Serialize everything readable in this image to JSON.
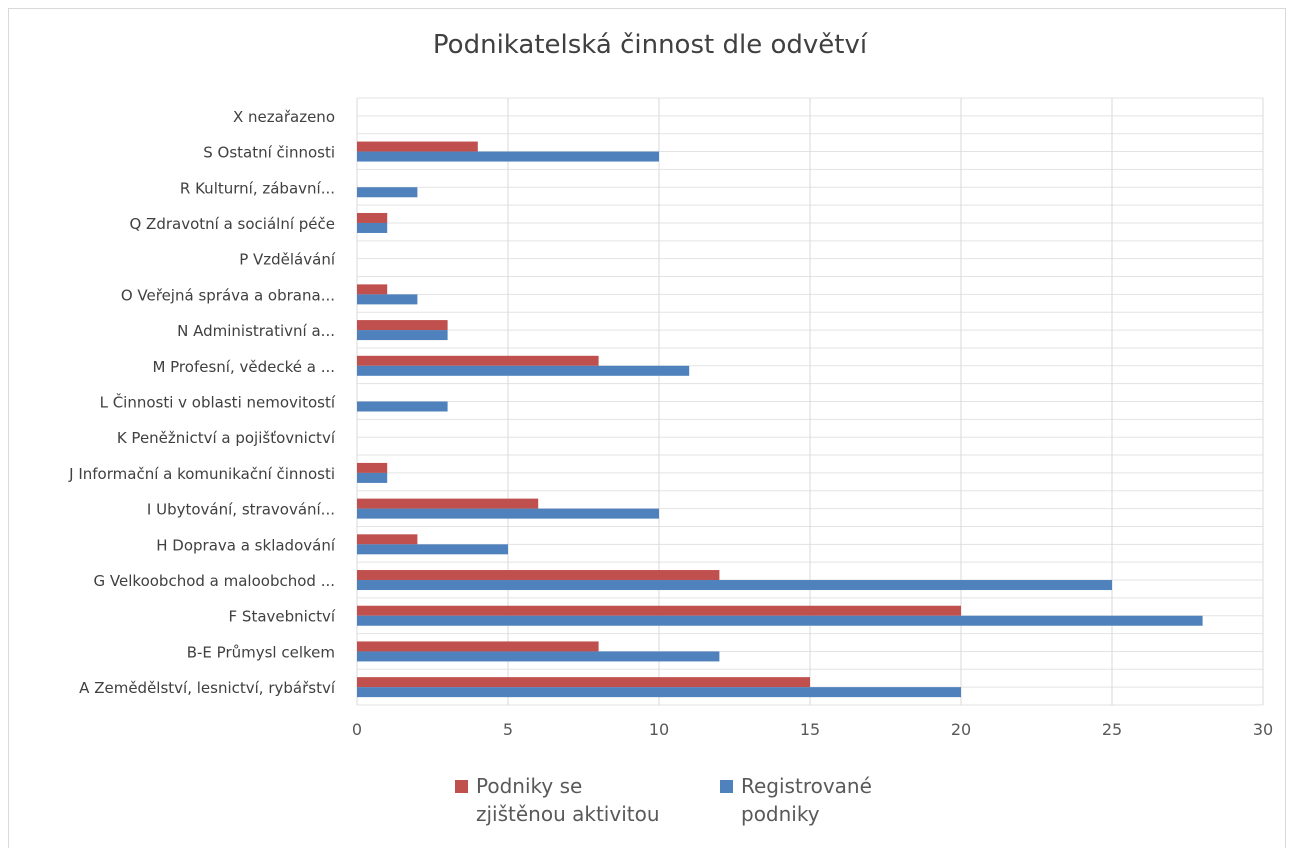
{
  "chart_data": {
    "type": "bar",
    "orientation": "horizontal",
    "title": "Podnikatelská činnost dle odvětví",
    "categories": [
      "A Zemědělství, lesnictví, rybářství",
      "B-E Průmysl celkem",
      "F Stavebnictví",
      "G Velkoobchod a maloobchod ...",
      "H Doprava a skladování",
      "I Ubytování, stravování...",
      "J Informační a komunikační činnosti",
      "K Peněžnictví a pojišťovnictví",
      "L Činnosti v oblasti nemovitostí",
      "M Profesní, vědecké a ...",
      "N Administrativní a...",
      "O Veřejná správa a obrana...",
      "P Vzdělávání",
      "Q  Zdravotní a sociální péče",
      "R Kulturní, zábavní...",
      "S Ostatní činnosti",
      "X nezařazeno"
    ],
    "series": [
      {
        "name": "Podniky se zjištěnou aktivitou",
        "color": "#c0504d",
        "values": [
          15,
          8,
          20,
          12,
          2,
          6,
          1,
          0,
          0,
          8,
          3,
          1,
          0,
          1,
          0,
          4,
          0
        ]
      },
      {
        "name": "Registrované podniky",
        "color": "#4f81bd",
        "values": [
          20,
          12,
          28,
          25,
          5,
          10,
          1,
          0,
          3,
          11,
          3,
          2,
          0,
          1,
          2,
          10,
          0
        ]
      }
    ],
    "xlim": [
      0,
      30
    ],
    "xticks": [
      0,
      5,
      10,
      15,
      20,
      25,
      30
    ],
    "grid": true,
    "legend_position": "bottom"
  },
  "legend": {
    "item1_line1": "Podniky se",
    "item1_line2": "zjištěnou aktivitou",
    "item2_line1": "Registrované",
    "item2_line2": "podniky"
  }
}
